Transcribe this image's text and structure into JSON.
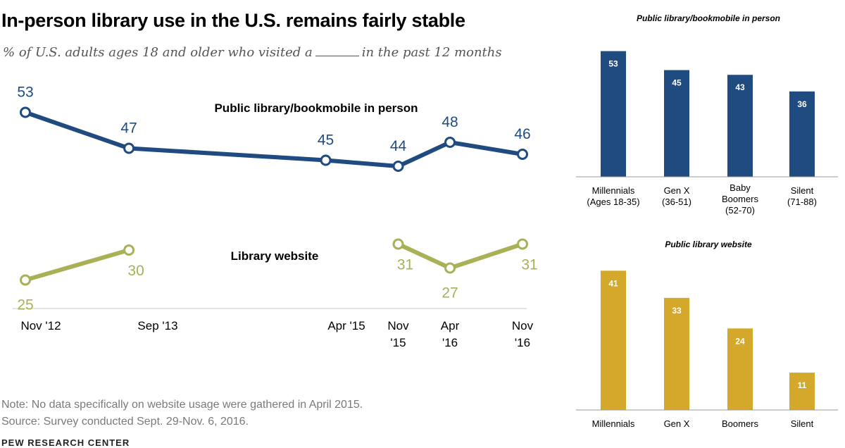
{
  "title": "In-person library use in the U.S. remains fairly stable",
  "subtitle": {
    "before": "% of U.S. adults ages 18 and older who visited a",
    "after": "in the past 12 months"
  },
  "note": "Note: No data specifically on website usage were gathered in April 2015.",
  "source": "Source: Survey conducted Sept. 29-Nov. 6, 2016.",
  "brand": "PEW RESEARCH CENTER",
  "colors": {
    "navy": "#1f4b80",
    "olive": "#a9b055",
    "gold": "#d4a82b"
  },
  "chart_data": [
    {
      "type": "line",
      "id": "trend",
      "x_dates": [
        "2012-11",
        "2013-09",
        "2015-04",
        "2015-11",
        "2016-04",
        "2016-11"
      ],
      "x_tick_labels": [
        [
          "Nov '12"
        ],
        [
          "Sep '13"
        ],
        [
          "Apr '15"
        ],
        [
          "Nov",
          "'15"
        ],
        [
          "Apr",
          "'16"
        ],
        [
          "Nov",
          "'16"
        ]
      ],
      "ylim": [
        20,
        60
      ],
      "series": [
        {
          "name": "Public library/bookmobile in person",
          "color": "#1f4b80",
          "values": [
            53,
            47,
            45,
            44,
            48,
            46
          ]
        },
        {
          "name": "Library website",
          "color": "#a9b055",
          "values": [
            25,
            30,
            null,
            31,
            27,
            31
          ]
        }
      ]
    },
    {
      "type": "bar",
      "id": "inperson-by-generation",
      "title": "Public library/bookmobile in person",
      "color": "#1f4b80",
      "ylim": [
        0,
        60
      ],
      "categories": [
        [
          "Millennials",
          "(Ages 18-35)"
        ],
        [
          "Gen X",
          "(36-51)"
        ],
        [
          "Baby",
          "Boomers",
          "(52-70)"
        ],
        [
          "Silent",
          "(71-88)"
        ]
      ],
      "values": [
        53,
        45,
        43,
        36
      ]
    },
    {
      "type": "bar",
      "id": "website-by-generation",
      "title": "Public library website",
      "color": "#d4a82b",
      "ylim": [
        0,
        45
      ],
      "categories": [
        [
          "Millennials"
        ],
        [
          "Gen X"
        ],
        [
          "Boomers"
        ],
        [
          "Silent"
        ]
      ],
      "values": [
        41,
        33,
        24,
        11
      ]
    }
  ]
}
